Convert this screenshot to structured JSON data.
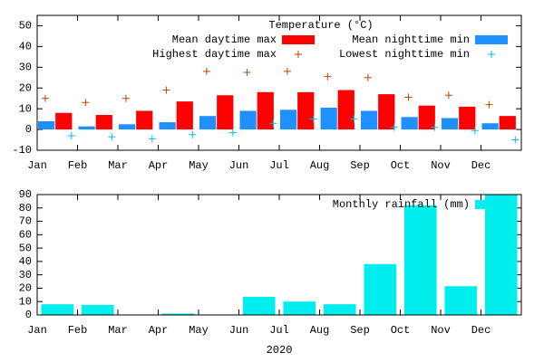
{
  "chart_data": [
    {
      "type": "bar",
      "legend_title": "Temperature (°C)",
      "categories": [
        "Jan",
        "Feb",
        "Mar",
        "Apr",
        "May",
        "Jun",
        "Jul",
        "Aug",
        "Sep",
        "Oct",
        "Nov",
        "Dec"
      ],
      "series": [
        {
          "name": "Mean daytime max",
          "color": "#ff0000",
          "style": "bar",
          "values": [
            8,
            7,
            9,
            13.5,
            16.5,
            18,
            18,
            19,
            17,
            11.5,
            11,
            6.5
          ]
        },
        {
          "name": "Mean nighttime min",
          "color": "#1e90ff",
          "style": "bar",
          "values": [
            4,
            1.5,
            2.5,
            3.5,
            6.5,
            9,
            9.5,
            10.5,
            9,
            6,
            5.5,
            3
          ]
        },
        {
          "name": "Highest daytime max",
          "color": "#c04000",
          "style": "points",
          "values": [
            15,
            13,
            15,
            19,
            28,
            27.5,
            28,
            25.5,
            25,
            15.5,
            16.5,
            12
          ]
        },
        {
          "name": "Lowest nighttime min",
          "color": "#00c0e0",
          "style": "points",
          "values": [
            -3,
            -3.5,
            -4.5,
            -2.5,
            -1.5,
            3,
            5,
            5,
            1,
            1,
            -0.5,
            -5
          ]
        }
      ],
      "ylim": [
        -10,
        55
      ],
      "yticks": [
        -10,
        0,
        10,
        20,
        30,
        40,
        50
      ],
      "grid": false,
      "legend": "top-right"
    },
    {
      "type": "bar",
      "xlabel": "2020",
      "categories": [
        "Jan",
        "Feb",
        "Mar",
        "Apr",
        "May",
        "Jun",
        "Jul",
        "Aug",
        "Sep",
        "Oct",
        "Nov",
        "Dec"
      ],
      "series": [
        {
          "name": "Monthly rainfall (mm)",
          "color": "#00eeee",
          "style": "bar",
          "values": [
            8,
            7.5,
            0,
            1,
            0,
            13.5,
            10,
            8,
            38,
            82,
            21.5,
            90
          ]
        }
      ],
      "ylim": [
        0,
        90
      ],
      "yticks": [
        0,
        10,
        20,
        30,
        40,
        50,
        60,
        70,
        80,
        90
      ],
      "grid": false,
      "legend": "top-right"
    }
  ]
}
